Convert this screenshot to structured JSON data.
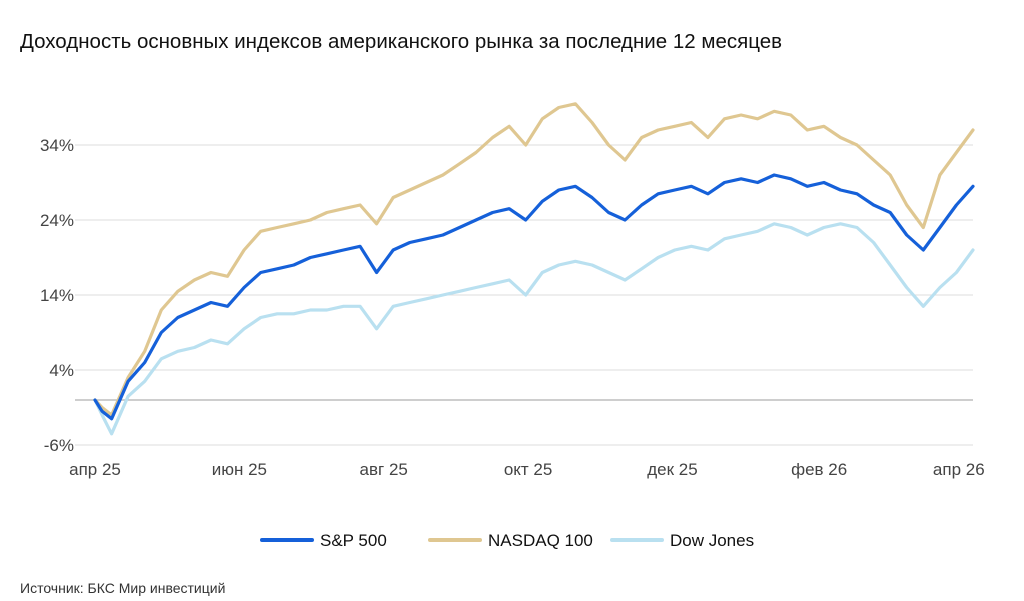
{
  "title": "Доходность основных индексов американского рынка за последние 12 месяцев",
  "source": "Источник: БКС Мир инвестиций",
  "chart_data": {
    "type": "line",
    "title": "Доходность основных индексов американского рынка за последние 12 месяцев",
    "ylim": [
      -6,
      40
    ],
    "yticks": [
      -6,
      4,
      14,
      24,
      34
    ],
    "ytick_labels": [
      "-6%",
      "4%",
      "14%",
      "24%",
      "34%"
    ],
    "xlim": [
      "2025-04-07",
      "2026-04-13"
    ],
    "xticks": [
      "2025-04-07",
      "2025-06-07",
      "2025-08-07",
      "2025-10-07",
      "2025-12-07",
      "2026-02-07",
      "2026-04-07"
    ],
    "xtick_labels": [
      "апр 25",
      "июн 25",
      "авг 25",
      "окт 25",
      "дек 25",
      "фев 26",
      "апр 26"
    ],
    "grid": true,
    "legend": "bottom",
    "x": [
      "2025-04-07",
      "2025-04-10",
      "2025-04-14",
      "2025-04-21",
      "2025-04-28",
      "2025-05-05",
      "2025-05-12",
      "2025-05-19",
      "2025-05-26",
      "2025-06-02",
      "2025-06-09",
      "2025-06-16",
      "2025-06-23",
      "2025-06-30",
      "2025-07-07",
      "2025-07-14",
      "2025-07-21",
      "2025-07-28",
      "2025-08-04",
      "2025-08-11",
      "2025-08-18",
      "2025-08-25",
      "2025-09-01",
      "2025-09-08",
      "2025-09-15",
      "2025-09-22",
      "2025-09-29",
      "2025-10-06",
      "2025-10-13",
      "2025-10-20",
      "2025-10-27",
      "2025-11-03",
      "2025-11-10",
      "2025-11-17",
      "2025-11-24",
      "2025-12-01",
      "2025-12-08",
      "2025-12-15",
      "2025-12-22",
      "2025-12-29",
      "2026-01-05",
      "2026-01-12",
      "2026-01-19",
      "2026-01-26",
      "2026-02-02",
      "2026-02-09",
      "2026-02-16",
      "2026-02-23",
      "2026-03-02",
      "2026-03-09",
      "2026-03-16",
      "2026-03-23",
      "2026-03-30",
      "2026-04-06",
      "2026-04-13"
    ],
    "series": [
      {
        "name": "S&P 500",
        "color": "#1560d9",
        "values": [
          0.0,
          -1.5,
          -2.5,
          2.5,
          5.0,
          9.0,
          11.0,
          12.0,
          13.0,
          12.5,
          15.0,
          17.0,
          17.5,
          18.0,
          19.0,
          19.5,
          20.0,
          20.5,
          17.0,
          20.0,
          21.0,
          21.5,
          22.0,
          23.0,
          24.0,
          25.0,
          25.5,
          24.0,
          26.5,
          28.0,
          28.5,
          27.0,
          25.0,
          24.0,
          26.0,
          27.5,
          28.0,
          28.5,
          27.5,
          29.0,
          29.5,
          29.0,
          30.0,
          29.5,
          28.5,
          29.0,
          28.0,
          27.5,
          26.0,
          25.0,
          22.0,
          20.0,
          23.0,
          26.0,
          28.5
        ]
      },
      {
        "name": "NASDAQ 100",
        "color": "#dfc791",
        "values": [
          0.0,
          -1.0,
          -2.0,
          3.0,
          6.5,
          12.0,
          14.5,
          16.0,
          17.0,
          16.5,
          20.0,
          22.5,
          23.0,
          23.5,
          24.0,
          25.0,
          25.5,
          26.0,
          23.5,
          27.0,
          28.0,
          29.0,
          30.0,
          31.5,
          33.0,
          35.0,
          36.5,
          34.0,
          37.5,
          39.0,
          39.5,
          37.0,
          34.0,
          32.0,
          35.0,
          36.0,
          36.5,
          37.0,
          35.0,
          37.5,
          38.0,
          37.5,
          38.5,
          38.0,
          36.0,
          36.5,
          35.0,
          34.0,
          32.0,
          30.0,
          26.0,
          23.0,
          30.0,
          33.0,
          36.0
        ]
      },
      {
        "name": "Dow Jones",
        "color": "#b9e0f0",
        "values": [
          0.0,
          -2.0,
          -4.5,
          0.5,
          2.5,
          5.5,
          6.5,
          7.0,
          8.0,
          7.5,
          9.5,
          11.0,
          11.5,
          11.5,
          12.0,
          12.0,
          12.5,
          12.5,
          9.5,
          12.5,
          13.0,
          13.5,
          14.0,
          14.5,
          15.0,
          15.5,
          16.0,
          14.0,
          17.0,
          18.0,
          18.5,
          18.0,
          17.0,
          16.0,
          17.5,
          19.0,
          20.0,
          20.5,
          20.0,
          21.5,
          22.0,
          22.5,
          23.5,
          23.0,
          22.0,
          23.0,
          23.5,
          23.0,
          21.0,
          18.0,
          15.0,
          12.5,
          15.0,
          17.0,
          20.0
        ]
      }
    ]
  }
}
